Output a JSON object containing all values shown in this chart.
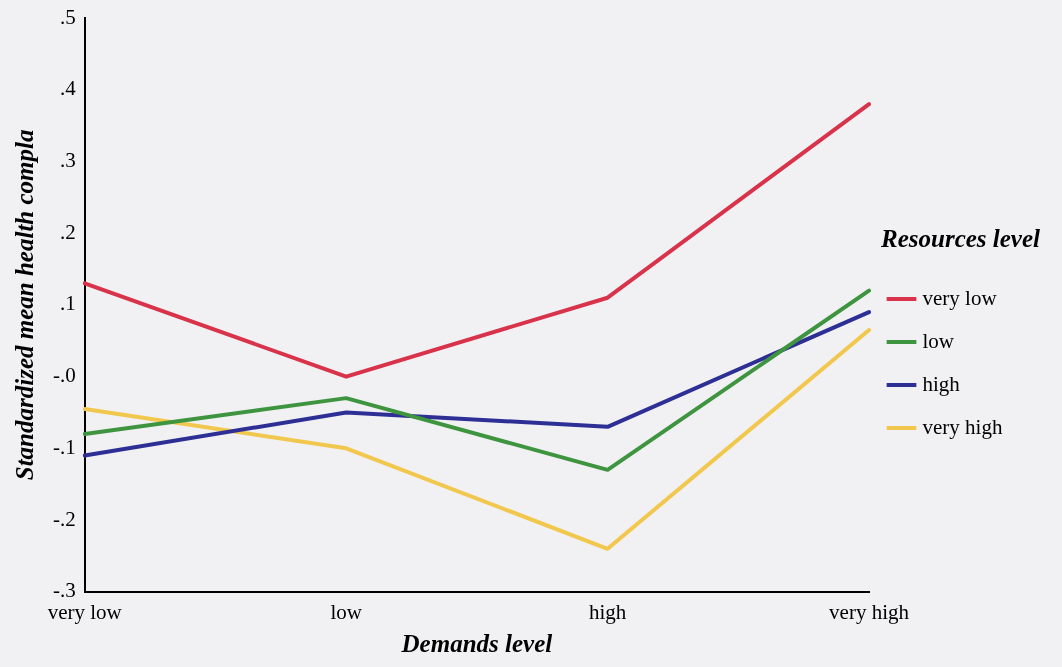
{
  "chart_data": {
    "type": "line",
    "xlabel": "Demands level",
    "ylabel": "Standardized mean health compla",
    "legend_title": "Resources level",
    "legend": "right",
    "categories": [
      "very low",
      "low",
      "high",
      "very high"
    ],
    "ylim": [
      -0.3,
      0.5
    ],
    "yticks": [
      {
        "value": -0.3,
        "label": "-.3"
      },
      {
        "value": -0.2,
        "label": "-.2"
      },
      {
        "value": -0.1,
        "label": "-.1"
      },
      {
        "value": 0,
        "label": "-.0"
      },
      {
        "value": 0.1,
        "label": ".1"
      },
      {
        "value": 0.2,
        "label": ".2"
      },
      {
        "value": 0.3,
        "label": ".3"
      },
      {
        "value": 0.4,
        "label": ".4"
      },
      {
        "value": 0.5,
        "label": ".5"
      }
    ],
    "grid": false,
    "marker": "none",
    "line_style": "solid",
    "series": [
      {
        "name": "very low",
        "color": "#d8334a",
        "values": [
          0.13,
          0.0,
          0.11,
          0.38
        ]
      },
      {
        "name": "low",
        "color": "#3f9440",
        "values": [
          -0.08,
          -0.03,
          -0.13,
          0.12
        ]
      },
      {
        "name": "high",
        "color": "#2e2f95",
        "values": [
          -0.11,
          -0.05,
          -0.07,
          0.09
        ]
      },
      {
        "name": "very high",
        "color": "#f2c74e",
        "values": [
          -0.045,
          -0.1,
          -0.24,
          0.065
        ]
      }
    ]
  }
}
